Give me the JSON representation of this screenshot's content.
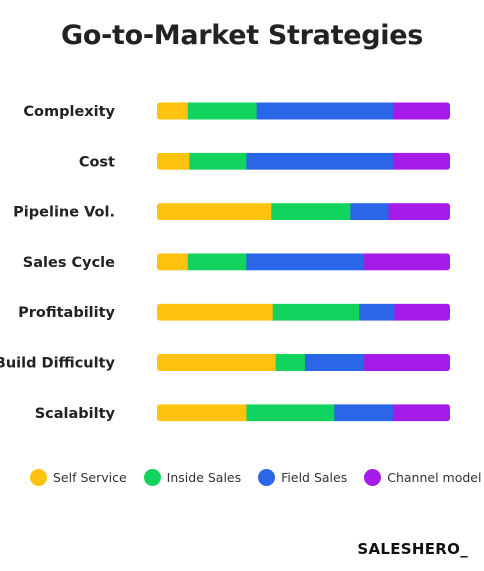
{
  "brand": "SALESHERO_",
  "chart_data": {
    "type": "bar",
    "orientation": "horizontal",
    "stacked": true,
    "title": "Go-to-Market Strategies",
    "categories": [
      "Complexity",
      "Cost",
      "Pipeline Vol.",
      "Sales Cycle",
      "Profitability",
      "Build Difficulty",
      "Scalabilty"
    ],
    "series": [
      {
        "name": "Self Service",
        "color": "#FFC20E",
        "values": [
          10.5,
          11,
          39,
          10.5,
          39.5,
          40.5,
          30.5
        ]
      },
      {
        "name": "Inside Sales",
        "color": "#12D35E",
        "values": [
          23.5,
          19.5,
          27,
          20,
          29.5,
          10,
          30
        ]
      },
      {
        "name": "Field Sales",
        "color": "#2A66E8",
        "values": [
          46.5,
          50,
          13,
          40,
          12,
          20,
          20
        ]
      },
      {
        "name": "Channel model",
        "color": "#A51CE9",
        "values": [
          19.5,
          19.5,
          21,
          29.5,
          19,
          29.5,
          19.5
        ]
      }
    ],
    "xlim": [
      0,
      100
    ],
    "grid": false,
    "legend_position": "bottom"
  }
}
